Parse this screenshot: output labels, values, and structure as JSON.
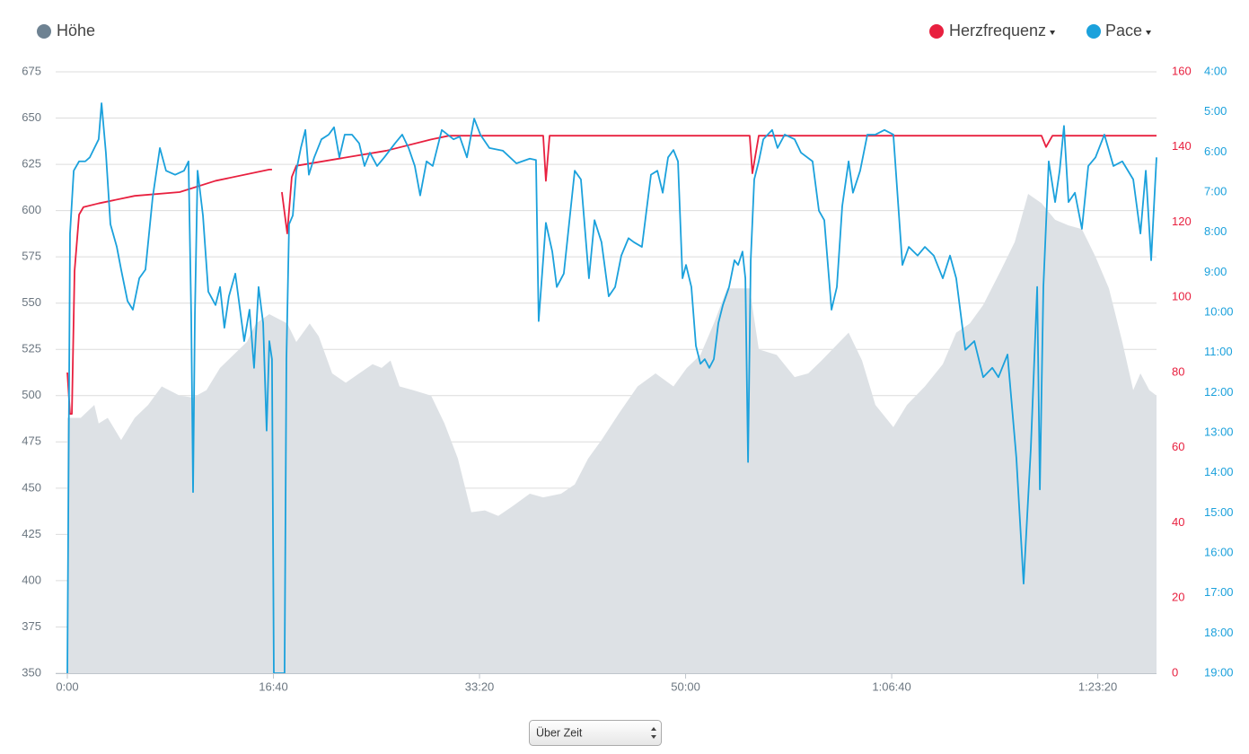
{
  "chart_data": {
    "type": "line",
    "xlim": [
      0,
      5285
    ],
    "xticks": [
      {
        "value": 0,
        "label": "0:00"
      },
      {
        "value": 1000,
        "label": "16:40"
      },
      {
        "value": 2000,
        "label": "33:20"
      },
      {
        "value": 3000,
        "label": "50:00"
      },
      {
        "value": 4000,
        "label": "1:06:40"
      },
      {
        "value": 5000,
        "label": "1:23:20"
      }
    ],
    "ylim": [
      350,
      675
    ],
    "yticks": [
      350,
      375,
      400,
      425,
      450,
      475,
      500,
      525,
      550,
      575,
      600,
      625,
      650,
      675
    ],
    "y2lim": [
      0,
      160
    ],
    "y2ticks": [
      0,
      20,
      40,
      60,
      80,
      100,
      120,
      140,
      160
    ],
    "y3lim": [
      1140,
      240
    ],
    "y3ticks": [
      {
        "value": 240,
        "label": "4:00"
      },
      {
        "value": 300,
        "label": "5:00"
      },
      {
        "value": 360,
        "label": "6:00"
      },
      {
        "value": 420,
        "label": "7:00"
      },
      {
        "value": 480,
        "label": "8:00"
      },
      {
        "value": 540,
        "label": "9:00"
      },
      {
        "value": 600,
        "label": "10:00"
      },
      {
        "value": 660,
        "label": "11:00"
      },
      {
        "value": 720,
        "label": "12:00"
      },
      {
        "value": 780,
        "label": "13:00"
      },
      {
        "value": 840,
        "label": "14:00"
      },
      {
        "value": 900,
        "label": "15:00"
      },
      {
        "value": 960,
        "label": "16:00"
      },
      {
        "value": 1020,
        "label": "17:00"
      },
      {
        "value": 1080,
        "label": "18:00"
      },
      {
        "value": 1140,
        "label": "19:00"
      }
    ],
    "grid": true,
    "series": [
      {
        "name": "Höhe",
        "type": "area",
        "axis": "y",
        "color": "#dde1e5",
        "legend_color": "#6e8292",
        "x": [
          0,
          65,
          131,
          152,
          196,
          261,
          327,
          392,
          458,
          545,
          610,
          675,
          741,
          806,
          871,
          915,
          980,
          1067,
          1111,
          1176,
          1220,
          1285,
          1351,
          1416,
          1481,
          1525,
          1568,
          1612,
          1677,
          1765,
          1830,
          1895,
          1960,
          2026,
          2091,
          2157,
          2244,
          2309,
          2396,
          2462,
          2527,
          2592,
          2680,
          2767,
          2854,
          2941,
          3006,
          3072,
          3137,
          3202,
          3311,
          3355,
          3442,
          3529,
          3595,
          3660,
          3747,
          3791,
          3856,
          3921,
          4008,
          4074,
          4161,
          4248,
          4313,
          4379,
          4444,
          4531,
          4597,
          4662,
          4727,
          4793,
          4858,
          4923,
          4989,
          5054,
          5119,
          5172,
          5207,
          5250,
          5285
        ],
        "values": [
          488,
          488,
          495,
          485,
          488,
          476,
          488,
          495,
          505,
          500,
          499,
          503,
          515,
          522,
          529,
          539,
          544,
          539,
          529,
          539,
          532,
          512,
          507,
          512,
          517,
          515,
          519,
          505,
          503,
          500,
          485,
          466,
          437,
          438,
          435,
          440,
          447,
          445,
          447,
          452,
          466,
          476,
          491,
          505,
          512,
          505,
          515,
          522,
          539,
          558,
          558,
          525,
          522,
          510,
          512,
          519,
          529,
          534,
          519,
          495,
          483,
          495,
          505,
          517,
          534,
          539,
          549,
          568,
          583,
          609,
          604,
          595,
          592,
          590,
          575,
          558,
          529,
          503,
          512,
          503,
          500
        ]
      },
      {
        "name": "Herzfrequenz",
        "type": "line",
        "axis": "y2",
        "color": "#e8203f",
        "x": [
          0,
          13,
          22,
          35,
          57,
          78,
          152,
          327,
          545,
          719,
          980,
          993,
          1020,
          1041,
          1067,
          1089,
          1111,
          1329,
          1547,
          1765,
          1852,
          2309,
          2322,
          2340,
          3311,
          3324,
          3355,
          4727,
          4749,
          4780,
          5285
        ],
        "values": [
          80,
          69,
          69,
          107,
          122,
          124,
          125,
          127,
          128,
          131,
          134,
          134,
          null,
          128,
          117,
          132,
          135,
          137,
          139,
          142,
          143,
          143,
          131,
          143,
          143,
          133,
          143,
          143,
          140,
          143,
          143
        ]
      },
      {
        "name": "Pace",
        "type": "line",
        "axis": "y3",
        "color": "#1ba1dc",
        "x": [
          0,
          13,
          31,
          57,
          87,
          109,
          152,
          166,
          187,
          209,
          240,
          261,
          292,
          318,
          349,
          379,
          414,
          449,
          479,
          523,
          566,
          588,
          601,
          610,
          619,
          632,
          658,
          684,
          719,
          741,
          762,
          784,
          815,
          841,
          858,
          884,
          906,
          928,
          950,
          967,
          980,
          993,
          1002,
          1054,
          1063,
          1076,
          1094,
          1111,
          1133,
          1155,
          1172,
          1198,
          1233,
          1268,
          1294,
          1320,
          1346,
          1381,
          1416,
          1442,
          1468,
          1503,
          1538,
          1590,
          1625,
          1656,
          1686,
          1712,
          1743,
          1773,
          1817,
          1874,
          1904,
          1939,
          1974,
          2004,
          2048,
          2113,
          2179,
          2244,
          2274,
          2287,
          2322,
          2353,
          2375,
          2409,
          2462,
          2492,
          2531,
          2558,
          2592,
          2627,
          2658,
          2688,
          2723,
          2749,
          2788,
          2832,
          2863,
          2889,
          2915,
          2941,
          2963,
          2985,
          3002,
          3028,
          3050,
          3072,
          3093,
          3115,
          3137,
          3159,
          3181,
          3211,
          3237,
          3255,
          3276,
          3290,
          3303,
          3316,
          3333,
          3355,
          3377,
          3420,
          3446,
          3481,
          3529,
          3560,
          3616,
          3647,
          3673,
          3708,
          3734,
          3760,
          3791,
          3812,
          3847,
          3882,
          3921,
          3965,
          4008,
          4052,
          4083,
          4126,
          4161,
          4204,
          4248,
          4283,
          4313,
          4357,
          4401,
          4444,
          4488,
          4518,
          4562,
          4605,
          4640,
          4675,
          4706,
          4719,
          4736,
          4762,
          4793,
          4815,
          4836,
          4858,
          4889,
          4923,
          4954,
          4989,
          5032,
          5076,
          5119,
          5172,
          5207,
          5233,
          5259,
          5285
        ],
        "values": [
          1140,
          482,
          388,
          374,
          374,
          368,
          341,
          287,
          361,
          468,
          502,
          536,
          583,
          596,
          549,
          536,
          428,
          354,
          388,
          394,
          388,
          374,
          603,
          869,
          603,
          388,
          455,
          569,
          589,
          562,
          623,
          576,
          542,
          603,
          643,
          596,
          683,
          562,
          616,
          777,
          643,
          670,
          1140,
          1140,
          670,
          468,
          455,
          388,
          354,
          327,
          394,
          368,
          341,
          334,
          323,
          368,
          334,
          334,
          347,
          381,
          361,
          381,
          368,
          347,
          334,
          354,
          381,
          425,
          374,
          381,
          327,
          341,
          337,
          368,
          310,
          334,
          354,
          358,
          377,
          370,
          372,
          613,
          466,
          509,
          562,
          542,
          388,
          401,
          549,
          462,
          495,
          576,
          562,
          515,
          489,
          495,
          502,
          394,
          388,
          421,
          368,
          357,
          374,
          549,
          529,
          562,
          650,
          677,
          670,
          683,
          670,
          616,
          589,
          562,
          522,
          529,
          509,
          549,
          824,
          522,
          401,
          374,
          341,
          327,
          354,
          334,
          341,
          361,
          374,
          448,
          462,
          596,
          562,
          441,
          374,
          421,
          388,
          334,
          334,
          327,
          334,
          529,
          502,
          515,
          502,
          515,
          549,
          515,
          549,
          656,
          643,
          697,
          683,
          697,
          663,
          818,
          1006,
          804,
          562,
          865,
          562,
          374,
          435,
          388,
          321,
          435,
          421,
          475,
          381,
          368,
          334,
          381,
          374,
          401,
          482,
          388,
          522,
          368
        ]
      }
    ]
  },
  "controls": {
    "select": "Über Zeit"
  }
}
